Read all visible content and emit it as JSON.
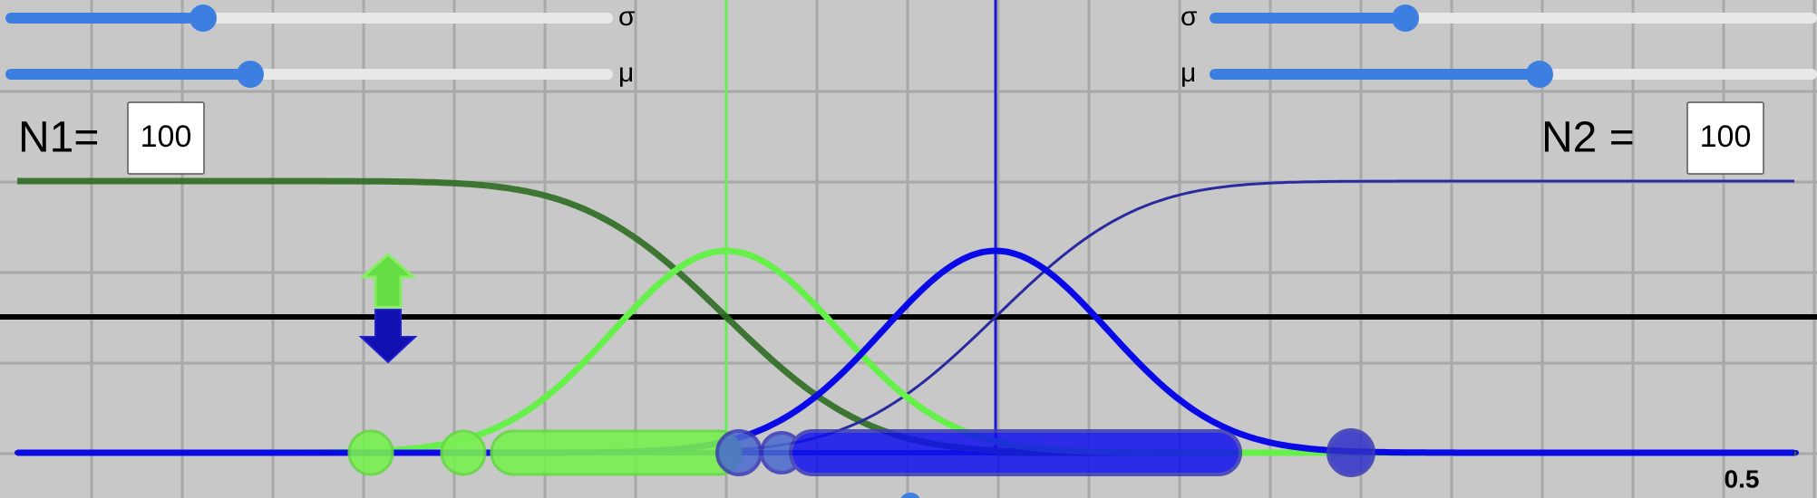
{
  "left_controls": {
    "sigma_label": "σ",
    "mu_label": "μ",
    "n_label": "N1=",
    "n_value": "100"
  },
  "right_controls": {
    "sigma_label": "σ",
    "mu_label": "μ",
    "n_label": "N2 =",
    "n_value": "100"
  },
  "axis_label": "0.5"
}
